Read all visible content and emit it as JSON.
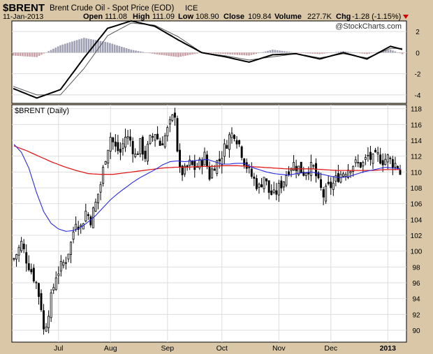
{
  "header": {
    "symbol": "$BRENT",
    "name": "Brent Crude Oil - Spot Price (EOD)",
    "exchange": "ICE",
    "date": "11-Jan-2013",
    "open_label": "Open",
    "open": "111.08",
    "high_label": "High",
    "high": "111.09",
    "low_label": "Low",
    "low": "108.90",
    "close_label": "Close",
    "close": "109.84",
    "volume_label": "Volume",
    "volume": "227.7K",
    "chg_label": "Chg",
    "chg": "-1.28 (-1.15%)",
    "watermark": "@StockCharts.com"
  },
  "colors": {
    "background": "#d9c7a8",
    "panel": "#ffffff",
    "candle": "#000000",
    "ma_short": "#2a2adf",
    "ma_long": "#e01c1c",
    "hist_pos": "#a0a0b4",
    "hist_neg": "#c9a0a6",
    "chg_arrow": "#cc0000",
    "grid": "#dddddd"
  },
  "chart_data": [
    {
      "type": "line",
      "panel": "indicator",
      "ylim": [
        -4.8,
        3.0
      ],
      "yticks": [
        -4,
        -2,
        0,
        2
      ],
      "series": [],
      "x": [
        0,
        10,
        20,
        30,
        40,
        50,
        60,
        70,
        80,
        90,
        100,
        110,
        120,
        130,
        140,
        150,
        160,
        165
      ],
      "macd": [
        -3.4,
        -4.3,
        -3.5,
        -0.5,
        2.3,
        3.0,
        2.5,
        1.2,
        0.0,
        -0.4,
        -0.9,
        -0.2,
        -0.1,
        -0.6,
        0.0,
        -0.6,
        0.6,
        0.3
      ],
      "signal": [
        -3.2,
        -4.0,
        -4.0,
        -1.5,
        1.6,
        2.8,
        2.6,
        1.5,
        0.0,
        -0.3,
        -0.7,
        -0.4,
        -0.1,
        -0.5,
        -0.1,
        -0.5,
        0.4,
        0.4
      ]
    },
    {
      "type": "candlestick",
      "panel": "price",
      "title": "$BRENT (Daily)",
      "ylim": [
        88.5,
        118.5
      ],
      "yticks": [
        90,
        92,
        94,
        96,
        98,
        100,
        102,
        104,
        106,
        108,
        110,
        112,
        114,
        116,
        118
      ],
      "xticks": [
        {
          "label": "Jul",
          "x": 18
        },
        {
          "label": "Aug",
          "x": 39
        },
        {
          "label": "Sep",
          "x": 62
        },
        {
          "label": "Oct",
          "x": 84
        },
        {
          "label": "Nov",
          "x": 107
        },
        {
          "label": "Dec",
          "x": 128
        },
        {
          "label": "2013",
          "x": 151
        }
      ],
      "close_path": [
        [
          0,
          99
        ],
        [
          3,
          101
        ],
        [
          5,
          99
        ],
        [
          7,
          97.5
        ],
        [
          9,
          96
        ],
        [
          11,
          93
        ],
        [
          12,
          90
        ],
        [
          13,
          91
        ],
        [
          15,
          94
        ],
        [
          17,
          97
        ],
        [
          19,
          98
        ],
        [
          21,
          99
        ],
        [
          23,
          101
        ],
        [
          25,
          104
        ],
        [
          27,
          103
        ],
        [
          29,
          105
        ],
        [
          31,
          104
        ],
        [
          33,
          106
        ],
        [
          35,
          108.5
        ],
        [
          37,
          112
        ],
        [
          39,
          114.5
        ],
        [
          41,
          113
        ],
        [
          43,
          112.5
        ],
        [
          45,
          114.5
        ],
        [
          47,
          114
        ],
        [
          49,
          112
        ],
        [
          51,
          113.5
        ],
        [
          53,
          112
        ],
        [
          55,
          114
        ],
        [
          57,
          115
        ],
        [
          59,
          113.5
        ],
        [
          61,
          114.5
        ],
        [
          63,
          116
        ],
        [
          65,
          117.5
        ],
        [
          66,
          113
        ],
        [
          67,
          110
        ],
        [
          69,
          110
        ],
        [
          71,
          111
        ],
        [
          73,
          110.5
        ],
        [
          75,
          111
        ],
        [
          77,
          112
        ],
        [
          79,
          109.5
        ],
        [
          81,
          111
        ],
        [
          83,
          111.5
        ],
        [
          85,
          113
        ],
        [
          87,
          114.5
        ],
        [
          89,
          115
        ],
        [
          91,
          113.5
        ],
        [
          93,
          111.5
        ],
        [
          95,
          110
        ],
        [
          97,
          109
        ],
        [
          99,
          108
        ],
        [
          101,
          109.5
        ],
        [
          103,
          107.5
        ],
        [
          105,
          107
        ],
        [
          107,
          108
        ],
        [
          109,
          109
        ],
        [
          111,
          110.5
        ],
        [
          113,
          111
        ],
        [
          115,
          110.5
        ],
        [
          117,
          110
        ],
        [
          119,
          110.5
        ],
        [
          121,
          110.5
        ],
        [
          123,
          108.5
        ],
        [
          125,
          107
        ],
        [
          127,
          108
        ],
        [
          129,
          108.5
        ],
        [
          131,
          109.5
        ],
        [
          133,
          110
        ],
        [
          135,
          110.5
        ],
        [
          137,
          111
        ],
        [
          139,
          111
        ],
        [
          141,
          111
        ],
        [
          143,
          112
        ],
        [
          145,
          111.5
        ],
        [
          147,
          112
        ],
        [
          149,
          111.5
        ],
        [
          151,
          111.8
        ],
        [
          153,
          111.2
        ],
        [
          155,
          110.8
        ],
        [
          156,
          109.84
        ]
      ],
      "ma_short": [
        [
          0,
          113.5
        ],
        [
          3,
          112.5
        ],
        [
          6,
          110.5
        ],
        [
          9,
          107.5
        ],
        [
          12,
          105
        ],
        [
          15,
          103.5
        ],
        [
          18,
          102.8
        ],
        [
          21,
          102.5
        ],
        [
          24,
          102.6
        ],
        [
          27,
          103
        ],
        [
          30,
          103.7
        ],
        [
          33,
          104.5
        ],
        [
          36,
          105.5
        ],
        [
          39,
          106.5
        ],
        [
          42,
          107.3
        ],
        [
          45,
          108
        ],
        [
          48,
          108.7
        ],
        [
          51,
          109.3
        ],
        [
          54,
          109.8
        ],
        [
          57,
          110.3
        ],
        [
          60,
          110.9
        ],
        [
          63,
          111.3
        ],
        [
          66,
          111.4
        ],
        [
          69,
          111.3
        ],
        [
          72,
          111.4
        ],
        [
          75,
          111.5
        ],
        [
          78,
          111.6
        ],
        [
          81,
          111.3
        ],
        [
          84,
          111
        ],
        [
          87,
          111
        ],
        [
          90,
          111.1
        ],
        [
          93,
          111.1
        ],
        [
          96,
          110.6
        ],
        [
          99,
          110.3
        ],
        [
          102,
          110
        ],
        [
          105,
          109.8
        ],
        [
          108,
          109.7
        ],
        [
          111,
          109.6
        ],
        [
          114,
          109.8
        ],
        [
          117,
          109.9
        ],
        [
          120,
          110
        ],
        [
          123,
          109.8
        ],
        [
          126,
          109.6
        ],
        [
          129,
          109.4
        ],
        [
          132,
          109.3
        ],
        [
          135,
          109.4
        ],
        [
          138,
          109.7
        ],
        [
          141,
          110
        ],
        [
          144,
          110.2
        ],
        [
          147,
          110.4
        ],
        [
          150,
          110.6
        ],
        [
          153,
          110.5
        ],
        [
          156,
          110.4
        ]
      ],
      "ma_long": [
        [
          0,
          113.3
        ],
        [
          5,
          112.7
        ],
        [
          10,
          112
        ],
        [
          15,
          111.3
        ],
        [
          20,
          110.7
        ],
        [
          25,
          110.2
        ],
        [
          30,
          109.8
        ],
        [
          35,
          109.7
        ],
        [
          40,
          109.7
        ],
        [
          45,
          109.9
        ],
        [
          50,
          110.1
        ],
        [
          55,
          110.3
        ],
        [
          60,
          110.5
        ],
        [
          65,
          110.6
        ],
        [
          70,
          110.6
        ],
        [
          75,
          110.7
        ],
        [
          80,
          110.7
        ],
        [
          85,
          110.8
        ],
        [
          90,
          110.8
        ],
        [
          95,
          110.7
        ],
        [
          100,
          110.6
        ],
        [
          105,
          110.5
        ],
        [
          110,
          110.4
        ],
        [
          115,
          110.4
        ],
        [
          120,
          110.4
        ],
        [
          125,
          110.3
        ],
        [
          130,
          110.2
        ],
        [
          135,
          110.2
        ],
        [
          140,
          110.2
        ],
        [
          145,
          110.2
        ],
        [
          150,
          110.3
        ],
        [
          156,
          110.3
        ]
      ]
    }
  ]
}
